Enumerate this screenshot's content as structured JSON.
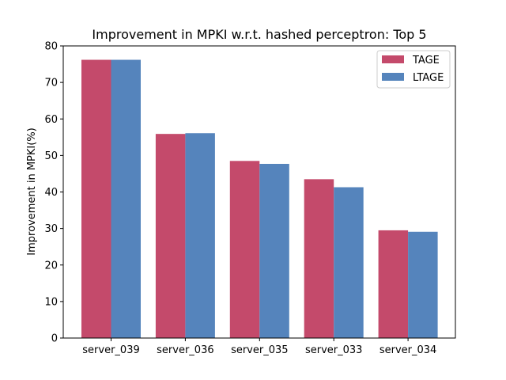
{
  "chart_data": {
    "type": "bar",
    "title": "Improvement in MPKI w.r.t. hashed perceptron: Top 5",
    "xlabel": "",
    "ylabel": "Improvement in MPKI(%)",
    "categories": [
      "server_039",
      "server_036",
      "server_035",
      "server_033",
      "server_034"
    ],
    "series": [
      {
        "name": "TAGE",
        "color": "#c44a6b",
        "values": [
          76.2,
          55.9,
          48.5,
          43.5,
          29.5
        ]
      },
      {
        "name": "LTAGE",
        "color": "#5584bc",
        "values": [
          76.2,
          56.1,
          47.7,
          41.3,
          29.1
        ]
      }
    ],
    "ylim": [
      0,
      80
    ],
    "yticks": [
      0,
      10,
      20,
      30,
      40,
      50,
      60,
      70,
      80
    ],
    "grid": false,
    "legend_position": "top-right"
  }
}
